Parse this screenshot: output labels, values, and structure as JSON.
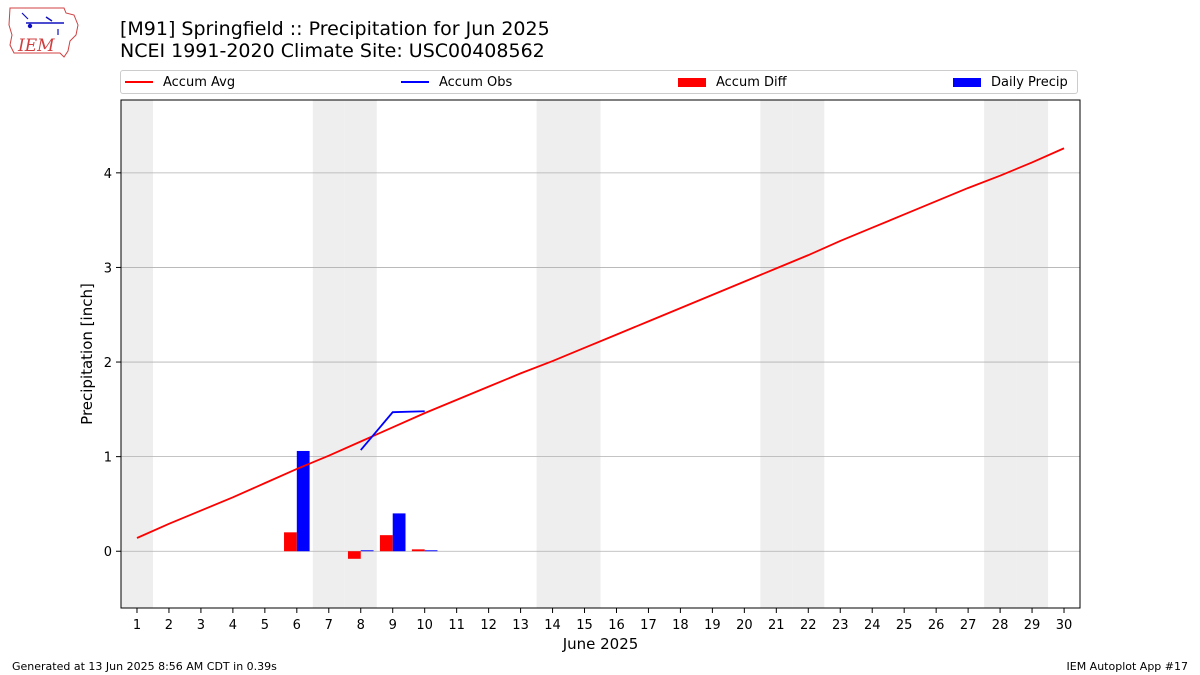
{
  "header": {
    "title_line1": "[M91] Springfield :: Precipitation for Jun 2025",
    "title_line2": "NCEI 1991-2020 Climate Site: USC00408562"
  },
  "logo": {
    "text": "IEM"
  },
  "footer": {
    "left": "Generated at 13 Jun 2025 8:56 AM CDT in 0.39s",
    "right": "IEM Autoplot App #17"
  },
  "colors": {
    "accum_avg": "#ff0000",
    "accum_obs": "#0000ff",
    "accum_diff": "#ff0000",
    "daily_precip": "#0000ff",
    "weekend_shade": "#eeeeee",
    "grid": "#b0b0b0"
  },
  "chart_data": {
    "type": "bar",
    "xlabel": "June 2025",
    "ylabel": "Precipitation [inch]",
    "xlim": [
      0.5,
      30.5
    ],
    "ylim": [
      -0.6,
      4.77
    ],
    "x_ticks": [
      "1",
      "2",
      "3",
      "4",
      "5",
      "6",
      "7",
      "8",
      "9",
      "10",
      "11",
      "12",
      "13",
      "14",
      "15",
      "16",
      "17",
      "18",
      "19",
      "20",
      "21",
      "22",
      "23",
      "24",
      "25",
      "26",
      "27",
      "28",
      "29",
      "30"
    ],
    "y_ticks": [
      "0",
      "1",
      "2",
      "3",
      "4"
    ],
    "y_tick_values": [
      0,
      1,
      2,
      3,
      4
    ],
    "grid": "horizontal",
    "legend": {
      "placement": "top",
      "items": [
        "Accum Avg",
        "Accum Obs",
        "Accum Diff",
        "Daily Precip"
      ]
    },
    "weekend_days": [
      1,
      7,
      8,
      14,
      15,
      21,
      22,
      28,
      29
    ],
    "series": [
      {
        "name": "Accum Avg",
        "kind": "line",
        "days": [
          1,
          2,
          3,
          4,
          5,
          6,
          7,
          8,
          9,
          10,
          11,
          12,
          13,
          14,
          15,
          16,
          17,
          18,
          19,
          20,
          21,
          22,
          23,
          24,
          25,
          26,
          27,
          28,
          29,
          30
        ],
        "values": [
          0.14,
          0.29,
          0.43,
          0.57,
          0.72,
          0.87,
          1.01,
          1.16,
          1.31,
          1.46,
          1.6,
          1.74,
          1.88,
          2.01,
          2.15,
          2.29,
          2.43,
          2.57,
          2.71,
          2.85,
          2.99,
          3.13,
          3.28,
          3.42,
          3.56,
          3.7,
          3.84,
          3.97,
          4.11,
          4.26
        ]
      },
      {
        "name": "Accum Obs",
        "kind": "line",
        "days": [
          8,
          9,
          10
        ],
        "values": [
          1.07,
          1.47,
          1.48
        ]
      },
      {
        "name": "Accum Diff",
        "kind": "bar",
        "days": [
          6,
          8,
          9,
          10
        ],
        "values": [
          0.2,
          -0.08,
          0.17,
          0.02
        ]
      },
      {
        "name": "Daily Precip",
        "kind": "bar",
        "days": [
          6,
          8,
          9,
          10
        ],
        "values": [
          1.06,
          0.01,
          0.4,
          0.01
        ]
      }
    ]
  }
}
